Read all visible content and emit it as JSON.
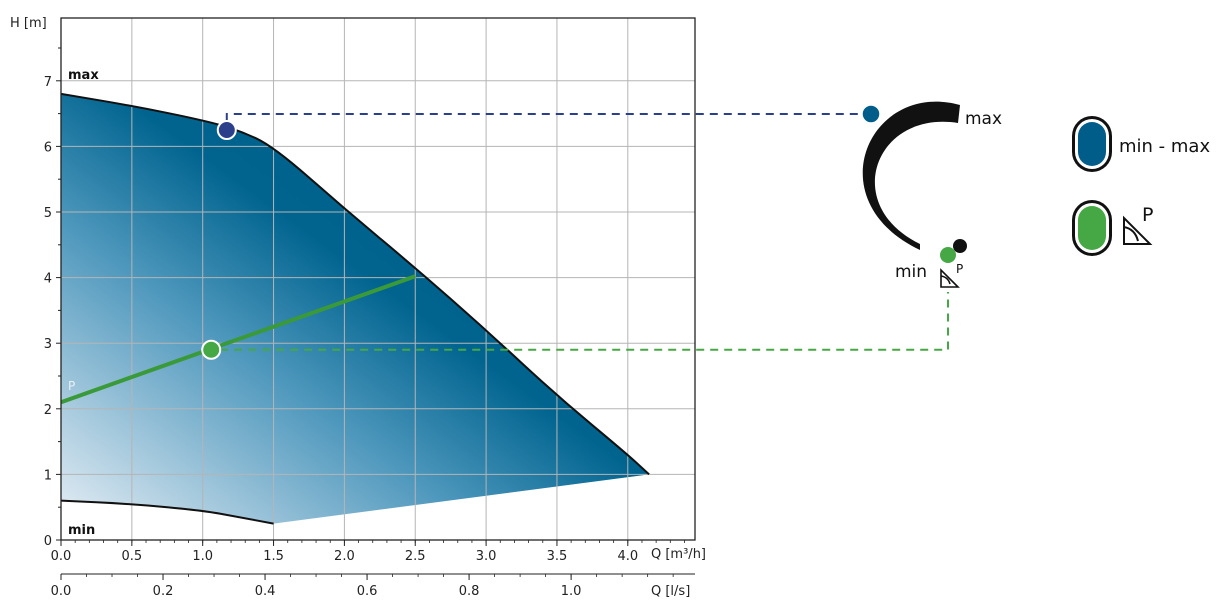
{
  "chart_data": {
    "type": "area",
    "y_axis_label": "H [m]",
    "x_axis_label_m3h": "Q [m³/h]",
    "x_axis_label_ls": "Q [l/s]",
    "y_ticks": [
      0,
      1,
      2,
      3,
      4,
      5,
      6,
      7
    ],
    "x_ticks_m3h": [
      0.0,
      0.5,
      1.0,
      1.5,
      2.0,
      2.5,
      3.0,
      3.5,
      4.0
    ],
    "x_ticks_m3h_labels": [
      "0.0",
      "0.5",
      "1.0",
      "1.5",
      "2.0",
      "2.5",
      "3.0",
      "3.5",
      "4.0"
    ],
    "x_ticks_ls": [
      0.0,
      0.2,
      0.4,
      0.6,
      0.8,
      1.0
    ],
    "x_ticks_ls_labels": [
      "0.0",
      "0.2",
      "0.4",
      "0.6",
      "0.8",
      "1.0"
    ],
    "xlim_m3h": [
      0,
      4.5
    ],
    "ylim": [
      0,
      7.8
    ],
    "grid": true,
    "max_curve_label": "max",
    "min_curve_label": "min",
    "max_curve": [
      [
        0,
        6.8
      ],
      [
        0.5,
        6.62
      ],
      [
        1.0,
        6.4
      ],
      [
        1.25,
        6.25
      ],
      [
        1.5,
        6.0
      ],
      [
        2.0,
        5.05
      ],
      [
        2.5,
        4.15
      ],
      [
        3.0,
        3.2
      ],
      [
        3.5,
        2.2
      ],
      [
        4.0,
        1.3
      ],
      [
        4.15,
        1.0
      ]
    ],
    "min_curve": [
      [
        0,
        0.6
      ],
      [
        0.5,
        0.55
      ],
      [
        1.0,
        0.45
      ],
      [
        1.25,
        0.35
      ],
      [
        1.5,
        0.25
      ]
    ],
    "lower_boundary": [
      [
        1.5,
        0.25
      ],
      [
        4.15,
        1.0
      ]
    ],
    "proportional_pressure_line": {
      "label": "P",
      "points": [
        [
          0,
          2.1
        ],
        [
          2.5,
          4.02
        ]
      ],
      "color": "#3a9a3a"
    },
    "operating_point_max": {
      "x": 1.17,
      "y": 6.25,
      "color": "#2b3f8a"
    },
    "operating_point_p": {
      "x": 1.06,
      "y": 2.9,
      "color": "#45a845"
    },
    "fill_color_dark": "#005a82",
    "fill_color_light": "#d6e4ee"
  },
  "dial": {
    "max_label": "max",
    "min_label": "min",
    "p_label": "P",
    "marker_color_blue": "#005d8a",
    "marker_color_green": "#45a845"
  },
  "legend": {
    "items": [
      {
        "label": "min - max",
        "color": "#005d8a",
        "icon": "pill-blue-icon"
      },
      {
        "label": "",
        "color": "#45a845",
        "icon": "proportional-pressure-icon",
        "p_label": "P"
      }
    ]
  }
}
